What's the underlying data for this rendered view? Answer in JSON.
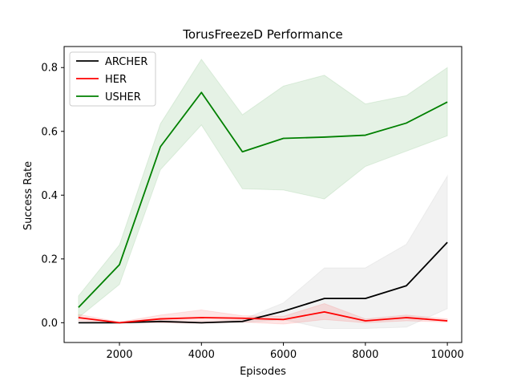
{
  "chart_data": {
    "type": "line",
    "title": "TorusFreezeD Performance",
    "xlabel": "Episodes",
    "ylabel": "Success Rate",
    "xlim": [
      650,
      10350
    ],
    "ylim": [
      -0.062,
      0.866
    ],
    "xticks": [
      2000,
      4000,
      6000,
      8000,
      10000
    ],
    "xtick_labels": [
      "2000",
      "4000",
      "6000",
      "8000",
      "10000"
    ],
    "yticks": [
      0.0,
      0.2,
      0.4,
      0.6,
      0.8
    ],
    "ytick_labels": [
      "0.0",
      "0.2",
      "0.4",
      "0.6",
      "0.8"
    ],
    "grid": false,
    "legend_position": "top-left",
    "x": [
      1000,
      2000,
      3000,
      4000,
      5000,
      6000,
      7000,
      8000,
      9000,
      10000
    ],
    "series": [
      {
        "name": "ARCHER",
        "color": "#000000",
        "band_color": "#808080",
        "values": [
          0.0,
          0.0,
          0.004,
          0.0,
          0.004,
          0.036,
          0.076,
          0.076,
          0.116,
          0.252
        ],
        "lower": [
          0.0,
          0.0,
          0.0,
          0.0,
          0.0,
          0.01,
          -0.018,
          -0.018,
          -0.014,
          0.044
        ],
        "upper": [
          0.0,
          0.0,
          0.01,
          0.0,
          0.01,
          0.062,
          0.172,
          0.172,
          0.246,
          0.46
        ]
      },
      {
        "name": "HER",
        "color": "#ff0000",
        "band_color": "#ff0000",
        "values": [
          0.016,
          0.0,
          0.012,
          0.016,
          0.014,
          0.01,
          0.034,
          0.006,
          0.016,
          0.006
        ],
        "lower": [
          0.006,
          0.0,
          0.0,
          -0.002,
          0.002,
          -0.004,
          0.01,
          0.0,
          0.006,
          0.002
        ],
        "upper": [
          0.026,
          0.002,
          0.024,
          0.04,
          0.022,
          0.02,
          0.06,
          0.012,
          0.024,
          0.012
        ]
      },
      {
        "name": "USHER",
        "color": "#008000",
        "band_color": "#008000",
        "values": [
          0.048,
          0.182,
          0.552,
          0.722,
          0.536,
          0.578,
          0.582,
          0.588,
          0.626,
          0.692
        ],
        "lower": [
          0.016,
          0.12,
          0.48,
          0.62,
          0.42,
          0.416,
          0.388,
          0.49,
          0.538,
          0.586
        ],
        "upper": [
          0.084,
          0.244,
          0.624,
          0.826,
          0.652,
          0.742,
          0.776,
          0.686,
          0.712,
          0.8
        ]
      }
    ]
  }
}
